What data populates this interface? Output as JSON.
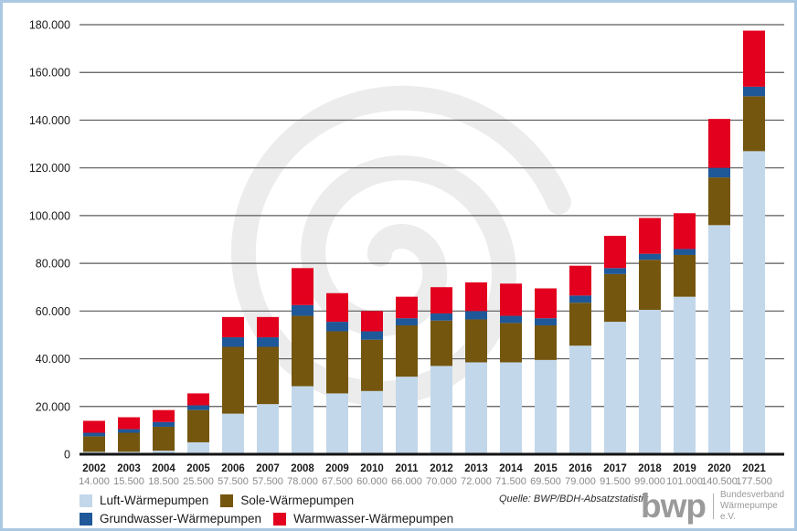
{
  "frame": {
    "border_color": "#ABC8E2",
    "background_color": "#ffffff"
  },
  "chart_data": {
    "type": "bar",
    "stacked": true,
    "grid": true,
    "legend_position": "bottom-left",
    "categories": [
      "2002",
      "2003",
      "2004",
      "2005",
      "2006",
      "2007",
      "2008",
      "2009",
      "2010",
      "2011",
      "2012",
      "2013",
      "2014",
      "2015",
      "2016",
      "2017",
      "2018",
      "2019",
      "2020",
      "2021"
    ],
    "totals_labels": [
      "14.000",
      "15.500",
      "18.500",
      "25.500",
      "57.500",
      "57.500",
      "78.000",
      "67.500",
      "60.000",
      "66.000",
      "70.000",
      "72.000",
      "71.500",
      "69.500",
      "79.000",
      "91.500",
      "99.000",
      "101.000",
      "140.500",
      "177.500"
    ],
    "series": [
      {
        "name": "Luft-Wärmepumpen",
        "color": "#C2D7EA",
        "values": [
          1000,
          1000,
          1500,
          5000,
          17000,
          21000,
          28500,
          25500,
          26500,
          32500,
          37000,
          38500,
          38500,
          39500,
          45500,
          55500,
          60500,
          66000,
          96000,
          127000
        ]
      },
      {
        "name": "Sole-Wärmepumpen",
        "color": "#75560E",
        "values": [
          6500,
          8000,
          10000,
          13500,
          28000,
          24000,
          29500,
          26000,
          21500,
          21500,
          19000,
          18000,
          16500,
          14500,
          18000,
          20000,
          21000,
          17500,
          20000,
          23000
        ]
      },
      {
        "name": "Grundwasser-Wärmepumpen",
        "color": "#1E5899",
        "values": [
          1500,
          1500,
          2000,
          2000,
          4000,
          4000,
          4500,
          4000,
          3500,
          3000,
          3000,
          3500,
          3000,
          3000,
          3000,
          2500,
          2500,
          2500,
          4000,
          4000
        ]
      },
      {
        "name": "Warmwasser-Wärmepumpen",
        "color": "#E2001E",
        "values": [
          5000,
          5000,
          5000,
          5000,
          8500,
          8500,
          15500,
          12000,
          8500,
          9000,
          11000,
          12000,
          13500,
          12500,
          12500,
          13500,
          15000,
          15000,
          20500,
          23500
        ]
      }
    ],
    "ylim": [
      0,
      180000
    ],
    "ytick_step": 20000,
    "ytick_labels": [
      "0",
      "20.000",
      "40.000",
      "60.000",
      "80.000",
      "100.000",
      "120.000",
      "140.000",
      "160.000",
      "180.000"
    ],
    "gridline_color": "#5a5a5a",
    "axis_color": "#141414",
    "tick_label_color": "#1a1a1a",
    "total_label_color": "#8a8a8a"
  },
  "watermark": {
    "shape": "spiral",
    "color": "#ececec"
  },
  "source": {
    "label": "Quelle: BWP/BDH-Absatzstatistik"
  },
  "logo": {
    "acronym": "bwp",
    "org_line1": "Bundesverband",
    "org_line2": "Wärmepumpe e.V."
  }
}
